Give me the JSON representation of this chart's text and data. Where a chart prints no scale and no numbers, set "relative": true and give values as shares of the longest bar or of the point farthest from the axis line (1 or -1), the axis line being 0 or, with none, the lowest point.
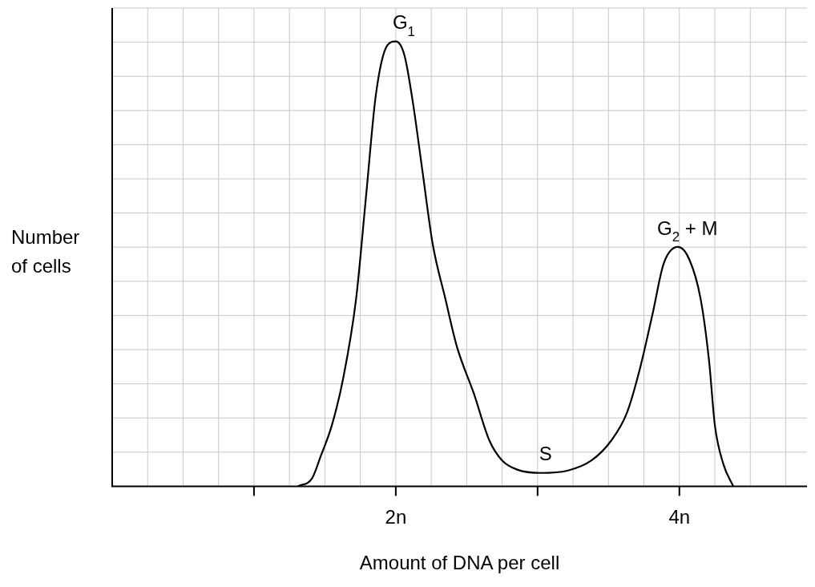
{
  "chart_data": {
    "type": "line",
    "relative": true,
    "xlabel": "Amount of DNA per cell",
    "ylabel": "Number of cells",
    "xlim": [
      0,
      4.9
    ],
    "xticks": [
      {
        "value": 1,
        "label": null
      },
      {
        "value": 2,
        "label": "2n"
      },
      {
        "value": 3,
        "label": null
      },
      {
        "value": 4,
        "label": "4n"
      }
    ],
    "grid": true,
    "legend": false,
    "marker": "none",
    "line_style": "solid",
    "series": [
      {
        "color": "#000000",
        "x": [
          1.31,
          1.41,
          1.47,
          1.55,
          1.63,
          1.72,
          1.79,
          1.86,
          1.94,
          2.0,
          2.06,
          2.12,
          2.19,
          2.26,
          2.35,
          2.43,
          2.55,
          2.66,
          2.75,
          2.86,
          3.02,
          3.21,
          3.38,
          3.52,
          3.63,
          3.72,
          3.81,
          3.89,
          3.99,
          4.07,
          4.15,
          4.21,
          4.25,
          4.31,
          4.38
        ],
        "values": [
          0,
          0.018,
          0.067,
          0.138,
          0.244,
          0.421,
          0.651,
          0.881,
          0.991,
          1,
          0.97,
          0.864,
          0.704,
          0.545,
          0.421,
          0.315,
          0.209,
          0.103,
          0.058,
          0.037,
          0.03,
          0.035,
          0.058,
          0.103,
          0.165,
          0.262,
          0.386,
          0.501,
          0.538,
          0.51,
          0.421,
          0.28,
          0.138,
          0.05,
          0
        ]
      }
    ],
    "annotations": [
      {
        "text": "G$_{1}$",
        "x": 2,
        "y": 1
      },
      {
        "text": "G$_{2}$ + M",
        "x": 4,
        "y": 0.538
      },
      {
        "text": "S",
        "x": 3,
        "y": 0.03
      }
    ]
  }
}
